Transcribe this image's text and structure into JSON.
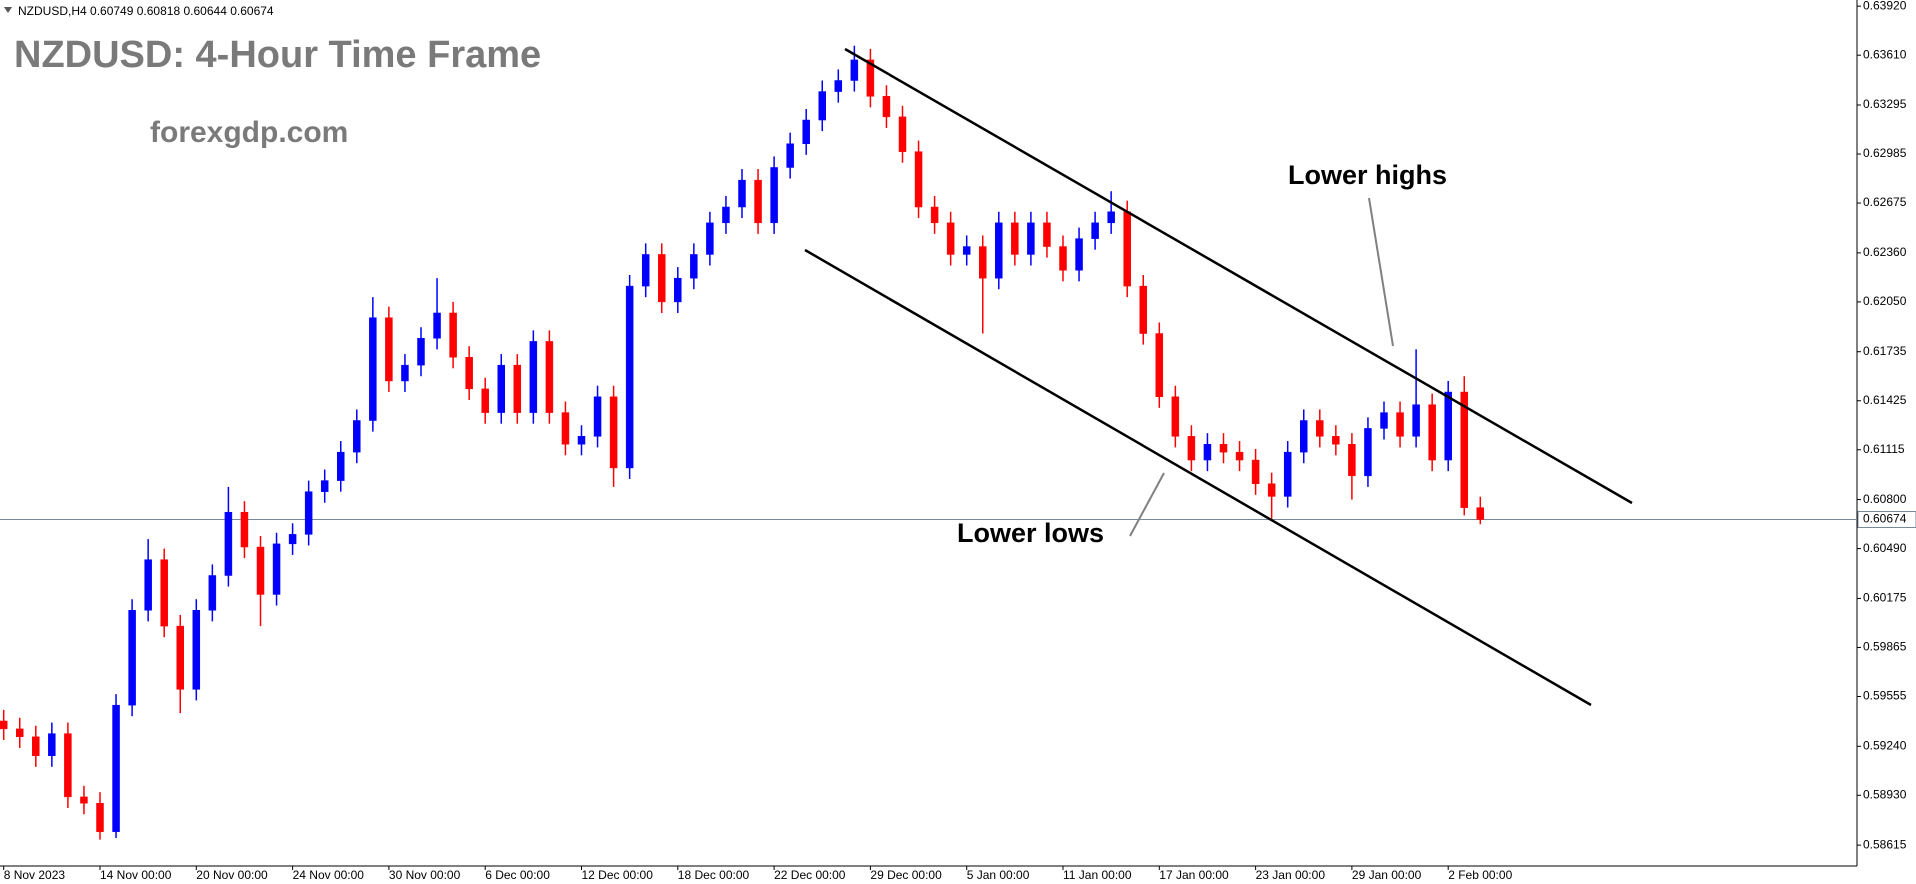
{
  "chart_data": {
    "type": "candlestick",
    "symbol": "NZDUSD,H4",
    "last_bar": {
      "open": 0.60749,
      "high": 0.60818,
      "low": 0.60644,
      "close": 0.60674
    },
    "title": "NZDUSD: 4-Hour Time Frame",
    "subtitle": "forexgdp.com",
    "annotations": {
      "upper": "Lower highs",
      "lower": "Lower lows"
    },
    "up_color": "#0000ff",
    "down_color": "#ff0000",
    "price_line": 0.60674,
    "price_line_color": "#778899",
    "categories": [
      "8 Nov 2023",
      null,
      null,
      null,
      null,
      null,
      "14 Nov 00:00",
      null,
      null,
      null,
      null,
      null,
      "20 Nov 00:00",
      null,
      null,
      null,
      null,
      null,
      "24 Nov 00:00",
      null,
      null,
      null,
      null,
      null,
      "30 Nov 00:00",
      null,
      null,
      null,
      null,
      null,
      "6 Dec 00:00",
      null,
      null,
      null,
      null,
      null,
      "12 Dec 00:00",
      null,
      null,
      null,
      null,
      null,
      "18 Dec 00:00",
      null,
      null,
      null,
      null,
      null,
      "22 Dec 00:00",
      null,
      null,
      null,
      null,
      null,
      "29 Dec 00:00",
      null,
      null,
      null,
      null,
      null,
      "5 Jan 00:00",
      null,
      null,
      null,
      null,
      null,
      "11 Jan 00:00",
      null,
      null,
      null,
      null,
      null,
      "17 Jan 00:00",
      null,
      null,
      null,
      null,
      null,
      "23 Jan 00:00",
      null,
      null,
      null,
      null,
      null,
      "29 Jan 00:00",
      null,
      null,
      null,
      null,
      null,
      "2 Feb 00:00",
      null,
      null
    ],
    "candles": {
      "open": [
        0.594,
        0.5935,
        0.593,
        0.5918,
        0.5932,
        0.5892,
        0.5888,
        0.587,
        0.595,
        0.601,
        0.6042,
        0.6,
        0.596,
        0.601,
        0.6032,
        0.6072,
        0.605,
        0.602,
        0.6052,
        0.6058,
        0.6085,
        0.6092,
        0.611,
        0.613,
        0.6195,
        0.6155,
        0.6165,
        0.6182,
        0.6198,
        0.617,
        0.615,
        0.6135,
        0.6165,
        0.6135,
        0.618,
        0.6135,
        0.6115,
        0.612,
        0.6145,
        0.61,
        0.6215,
        0.6235,
        0.6205,
        0.622,
        0.6235,
        0.6255,
        0.6265,
        0.6282,
        0.6255,
        0.629,
        0.6305,
        0.632,
        0.6338,
        0.6345,
        0.6358,
        0.6335,
        0.6322,
        0.63,
        0.6265,
        0.6255,
        0.6235,
        0.624,
        0.622,
        0.6255,
        0.6235,
        0.6255,
        0.624,
        0.6225,
        0.6245,
        0.6255,
        0.6262,
        0.6215,
        0.6185,
        0.6145,
        0.612,
        0.6105,
        0.6115,
        0.611,
        0.6105,
        0.609,
        0.6082,
        0.611,
        0.613,
        0.612,
        0.6115,
        0.6095,
        0.6125,
        0.6135,
        0.612,
        0.614,
        0.6105,
        0.6148,
        0.60749
      ],
      "high": [
        0.5947,
        0.5942,
        0.5937,
        0.5939,
        0.5939,
        0.5899,
        0.5895,
        0.5957,
        0.6017,
        0.6055,
        0.6049,
        0.6007,
        0.6017,
        0.6039,
        0.6088,
        0.6079,
        0.6057,
        0.6059,
        0.6065,
        0.6092,
        0.6099,
        0.6117,
        0.6137,
        0.6208,
        0.6202,
        0.6172,
        0.6189,
        0.622,
        0.6205,
        0.6177,
        0.6157,
        0.6172,
        0.6172,
        0.6187,
        0.6187,
        0.6142,
        0.6127,
        0.6152,
        0.6152,
        0.6222,
        0.6242,
        0.6242,
        0.6227,
        0.6242,
        0.6262,
        0.6272,
        0.6289,
        0.6289,
        0.6297,
        0.6312,
        0.6327,
        0.6345,
        0.6352,
        0.6367,
        0.6365,
        0.6342,
        0.6329,
        0.6307,
        0.6272,
        0.6262,
        0.6247,
        0.6247,
        0.6262,
        0.6262,
        0.6262,
        0.6262,
        0.6247,
        0.6252,
        0.6262,
        0.6275,
        0.6269,
        0.6222,
        0.6192,
        0.6152,
        0.6127,
        0.6122,
        0.6122,
        0.6117,
        0.6112,
        0.6097,
        0.6117,
        0.6137,
        0.6137,
        0.6127,
        0.6122,
        0.6132,
        0.6142,
        0.6142,
        0.6175,
        0.6147,
        0.6155,
        0.6158,
        0.60818
      ],
      "low": [
        0.5928,
        0.5923,
        0.5911,
        0.5911,
        0.5885,
        0.5881,
        0.5865,
        0.5866,
        0.5943,
        0.6003,
        0.5993,
        0.5945,
        0.5953,
        0.6003,
        0.6025,
        0.6043,
        0.6,
        0.6013,
        0.6045,
        0.6051,
        0.6078,
        0.6085,
        0.6103,
        0.6123,
        0.6148,
        0.6148,
        0.6158,
        0.6175,
        0.6163,
        0.6143,
        0.6128,
        0.6128,
        0.6128,
        0.6128,
        0.6128,
        0.6108,
        0.6108,
        0.6113,
        0.6088,
        0.6093,
        0.6208,
        0.6198,
        0.6198,
        0.6213,
        0.6228,
        0.6248,
        0.6258,
        0.6248,
        0.6248,
        0.6283,
        0.6298,
        0.6313,
        0.6331,
        0.6338,
        0.6328,
        0.6315,
        0.6293,
        0.6258,
        0.6248,
        0.6228,
        0.6228,
        0.6185,
        0.6213,
        0.6228,
        0.6228,
        0.6233,
        0.6218,
        0.6218,
        0.6238,
        0.6248,
        0.6208,
        0.6178,
        0.6138,
        0.6113,
        0.6098,
        0.6098,
        0.6103,
        0.6098,
        0.6083,
        0.6068,
        0.6075,
        0.6103,
        0.6113,
        0.6108,
        0.608,
        0.6088,
        0.6118,
        0.6113,
        0.6113,
        0.6098,
        0.6098,
        0.607,
        0.60644
      ],
      "close": [
        0.5935,
        0.593,
        0.5918,
        0.5932,
        0.5892,
        0.5888,
        0.587,
        0.595,
        0.601,
        0.6042,
        0.6,
        0.596,
        0.601,
        0.6032,
        0.6072,
        0.605,
        0.602,
        0.6052,
        0.6058,
        0.6085,
        0.6092,
        0.611,
        0.613,
        0.6195,
        0.6155,
        0.6165,
        0.6182,
        0.6198,
        0.617,
        0.615,
        0.6135,
        0.6165,
        0.6135,
        0.618,
        0.6135,
        0.6115,
        0.612,
        0.6145,
        0.61,
        0.6215,
        0.6235,
        0.6205,
        0.622,
        0.6235,
        0.6255,
        0.6265,
        0.6282,
        0.6255,
        0.629,
        0.6305,
        0.632,
        0.6338,
        0.6345,
        0.6358,
        0.6335,
        0.6322,
        0.63,
        0.6265,
        0.6255,
        0.6235,
        0.624,
        0.622,
        0.6255,
        0.6235,
        0.6255,
        0.624,
        0.6225,
        0.6245,
        0.6255,
        0.6262,
        0.6215,
        0.6185,
        0.6145,
        0.612,
        0.6105,
        0.6115,
        0.611,
        0.6105,
        0.609,
        0.6082,
        0.611,
        0.613,
        0.612,
        0.6115,
        0.6095,
        0.6125,
        0.6135,
        0.612,
        0.614,
        0.6105,
        0.6148,
        0.60749,
        0.60674
      ]
    },
    "ylim": [
      0.58483,
      0.63959
    ],
    "yticks": [
      {
        "value": 0.6392,
        "label": "0.63920"
      },
      {
        "value": 0.6361,
        "label": "0.63610"
      },
      {
        "value": 0.63295,
        "label": "0.63295"
      },
      {
        "value": 0.62985,
        "label": "0.62985"
      },
      {
        "value": 0.62675,
        "label": "0.62675"
      },
      {
        "value": 0.6236,
        "label": "0.62360"
      },
      {
        "value": 0.6205,
        "label": "0.62050"
      },
      {
        "value": 0.61735,
        "label": "0.61735"
      },
      {
        "value": 0.61425,
        "label": "0.61425"
      },
      {
        "value": 0.61115,
        "label": "0.61115"
      },
      {
        "value": 0.608,
        "label": "0.60800"
      },
      {
        "value": 0.6049,
        "label": "0.60490"
      },
      {
        "value": 0.60175,
        "label": "0.60175"
      },
      {
        "value": 0.59865,
        "label": "0.59865"
      },
      {
        "value": 0.59555,
        "label": "0.59555"
      },
      {
        "value": 0.5924,
        "label": "0.59240"
      },
      {
        "value": 0.5893,
        "label": "0.58930"
      },
      {
        "value": 0.58615,
        "label": "0.58615"
      }
    ],
    "grid": false
  }
}
